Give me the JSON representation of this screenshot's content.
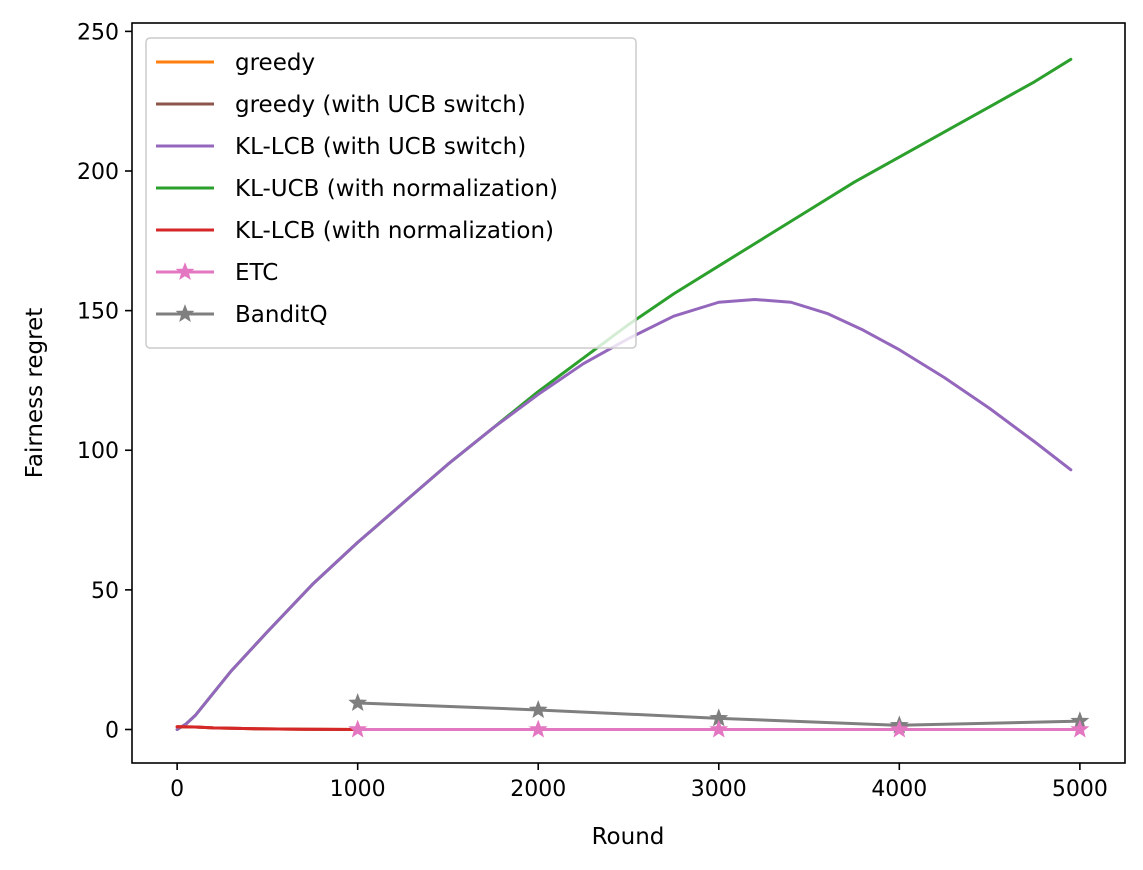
{
  "chart_data": {
    "type": "line",
    "title": "",
    "xlabel": "Round",
    "ylabel": "Fairness regret",
    "xlim": [
      -250,
      5250
    ],
    "ylim": [
      -12,
      253
    ],
    "xticks": [
      0,
      1000,
      2000,
      3000,
      4000,
      5000
    ],
    "yticks": [
      0,
      50,
      100,
      150,
      200,
      250
    ],
    "grid": false,
    "legend_position": "top-left",
    "series": [
      {
        "name": "greedy",
        "color": "#ff7f0e",
        "marker": "none",
        "x": [
          0,
          100,
          200,
          400,
          700,
          1000
        ],
        "y": [
          1,
          0.9,
          0.6,
          0.3,
          0.1,
          0
        ]
      },
      {
        "name": "greedy (with UCB switch)",
        "color": "#8c564b",
        "marker": "none",
        "x": [
          0,
          100,
          200,
          400,
          700,
          1000
        ],
        "y": [
          1,
          0.9,
          0.6,
          0.3,
          0.1,
          0
        ]
      },
      {
        "name": "KL-LCB (with UCB switch)",
        "color": "#9467bd",
        "marker": "none",
        "x": [
          0,
          50,
          100,
          200,
          300,
          500,
          750,
          1000,
          1250,
          1500,
          1750,
          2000,
          2250,
          2500,
          2750,
          3000,
          3200,
          3400,
          3600,
          3800,
          4000,
          4250,
          4500,
          4750,
          4950
        ],
        "y": [
          0,
          2,
          5,
          13,
          21,
          35,
          52,
          67,
          81,
          95,
          108,
          120,
          131,
          140,
          148,
          153,
          154,
          153,
          149,
          143,
          136,
          126,
          115,
          103,
          93
        ]
      },
      {
        "name": "KL-UCB (with normalization)",
        "color": "#2ca02c",
        "marker": "none",
        "x": [
          0,
          50,
          100,
          200,
          300,
          500,
          750,
          1000,
          1250,
          1500,
          1750,
          2000,
          2250,
          2500,
          2750,
          3000,
          3250,
          3500,
          3750,
          4000,
          4250,
          4500,
          4750,
          4950
        ],
        "y": [
          0,
          2,
          5,
          13,
          21,
          35,
          52,
          67,
          81,
          95,
          108,
          121,
          133,
          145,
          156,
          166,
          176,
          186,
          196,
          205,
          214,
          223,
          232,
          240
        ]
      },
      {
        "name": "KL-LCB (with normalization)",
        "color": "#d62728",
        "marker": "none",
        "x": [
          0,
          100,
          200,
          400,
          700,
          1000
        ],
        "y": [
          1,
          0.9,
          0.6,
          0.3,
          0.1,
          0
        ]
      },
      {
        "name": "ETC",
        "color": "#e377c2",
        "marker": "star",
        "x": [
          1000,
          2000,
          3000,
          4000,
          5000
        ],
        "y": [
          0,
          0,
          0,
          0,
          0
        ]
      },
      {
        "name": "BanditQ",
        "color": "#7f7f7f",
        "marker": "star",
        "x": [
          1000,
          2000,
          3000,
          4000,
          5000
        ],
        "y": [
          9.5,
          7,
          4,
          1.5,
          3
        ]
      }
    ]
  }
}
